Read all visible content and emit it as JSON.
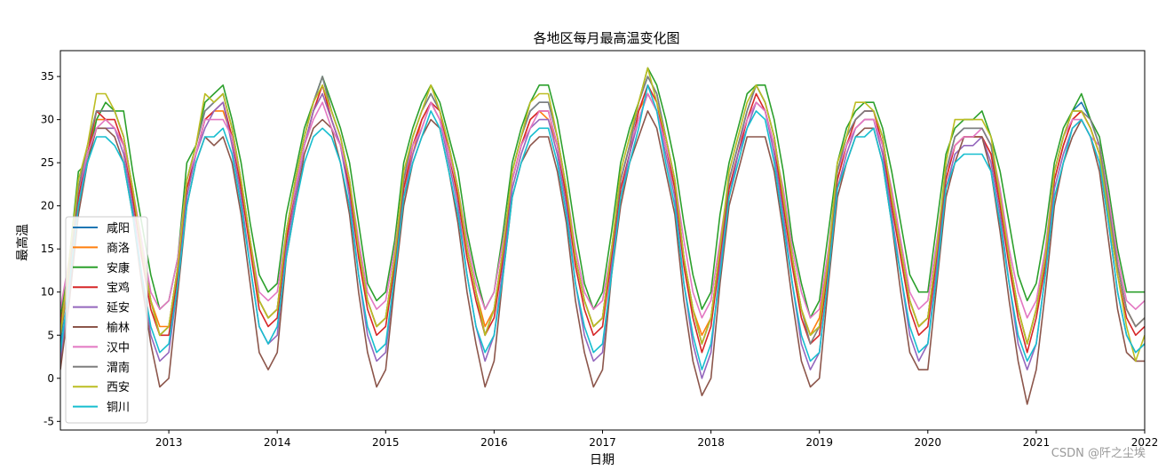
{
  "chart_data": {
    "type": "line",
    "title": "各地区每月最高温变化图",
    "xlabel": "日期",
    "ylabel": "最高温",
    "x_start": "2012-01",
    "x_end": "2022-01",
    "xticks": [
      "2013",
      "2014",
      "2015",
      "2016",
      "2017",
      "2018",
      "2019",
      "2020",
      "2021",
      "2022"
    ],
    "yticks": [
      -5,
      0,
      5,
      10,
      15,
      20,
      25,
      30,
      35
    ],
    "ylim": [
      -6,
      38
    ],
    "grid": false,
    "legend_position": "lower-left",
    "series": [
      {
        "name": "咸阳",
        "color": "#1f77b4",
        "values": [
          4,
          13,
          22,
          27,
          31,
          31,
          31,
          28,
          22,
          15,
          9,
          5,
          6,
          13,
          23,
          27,
          31,
          32,
          33,
          29,
          23,
          16,
          9,
          7,
          8,
          17,
          23,
          28,
          32,
          35,
          31,
          28,
          23,
          15,
          9,
          6,
          7,
          14,
          23,
          28,
          31,
          33,
          31,
          27,
          22,
          15,
          10,
          5,
          8,
          15,
          24,
          28,
          31,
          32,
          32,
          28,
          22,
          14,
          9,
          6,
          7,
          15,
          23,
          27,
          32,
          35,
          33,
          28,
          23,
          14,
          8,
          4,
          7,
          15,
          23,
          27,
          31,
          34,
          32,
          28,
          21,
          14,
          8,
          5,
          6,
          14,
          24,
          28,
          30,
          31,
          31,
          28,
          21,
          15,
          9,
          6,
          7,
          15,
          24,
          28,
          29,
          29,
          29,
          27,
          21,
          14,
          8,
          4,
          8,
          14,
          24,
          28,
          31,
          32,
          30,
          27,
          20,
          13,
          8,
          6,
          7
        ]
      },
      {
        "name": "商洛",
        "color": "#ff7f0e",
        "values": [
          5,
          12,
          21,
          26,
          30,
          30,
          29,
          27,
          21,
          15,
          9,
          6,
          6,
          13,
          22,
          26,
          30,
          31,
          31,
          28,
          22,
          16,
          9,
          7,
          8,
          16,
          22,
          27,
          31,
          33,
          30,
          27,
          22,
          15,
          9,
          6,
          7,
          14,
          22,
          26,
          30,
          32,
          30,
          26,
          21,
          15,
          10,
          6,
          8,
          15,
          23,
          27,
          30,
          31,
          30,
          27,
          21,
          14,
          9,
          6,
          7,
          15,
          22,
          26,
          31,
          33,
          31,
          27,
          22,
          14,
          8,
          5,
          7,
          15,
          22,
          26,
          30,
          32,
          31,
          27,
          21,
          14,
          8,
          5,
          7,
          14,
          23,
          27,
          29,
          30,
          30,
          27,
          21,
          15,
          9,
          6,
          7,
          15,
          23,
          27,
          28,
          28,
          28,
          26,
          21,
          14,
          8,
          4,
          8,
          14,
          23,
          27,
          30,
          31,
          29,
          26,
          20,
          13,
          8,
          6,
          7
        ]
      },
      {
        "name": "安康",
        "color": "#2ca02c",
        "values": [
          7,
          14,
          24,
          25,
          30,
          32,
          31,
          31,
          24,
          18,
          12,
          8,
          9,
          14,
          25,
          27,
          32,
          33,
          34,
          30,
          25,
          18,
          12,
          10,
          11,
          19,
          24,
          29,
          32,
          35,
          32,
          29,
          25,
          18,
          11,
          9,
          10,
          16,
          25,
          29,
          32,
          34,
          32,
          28,
          24,
          17,
          12,
          8,
          10,
          17,
          25,
          29,
          32,
          34,
          34,
          30,
          24,
          17,
          11,
          8,
          10,
          17,
          25,
          29,
          32,
          36,
          34,
          30,
          25,
          18,
          12,
          8,
          10,
          19,
          25,
          29,
          33,
          34,
          34,
          30,
          24,
          16,
          11,
          7,
          9,
          17,
          25,
          29,
          31,
          32,
          32,
          29,
          24,
          18,
          12,
          10,
          10,
          18,
          26,
          29,
          30,
          30,
          31,
          28,
          24,
          18,
          12,
          9,
          11,
          17,
          25,
          29,
          31,
          33,
          30,
          28,
          22,
          15,
          10,
          10,
          10
        ]
      },
      {
        "name": "宝鸡",
        "color": "#d62728",
        "values": [
          6,
          13,
          21,
          26,
          31,
          30,
          30,
          27,
          21,
          14,
          8,
          5,
          5,
          12,
          22,
          26,
          30,
          31,
          32,
          28,
          22,
          15,
          8,
          6,
          7,
          16,
          22,
          27,
          31,
          34,
          30,
          27,
          22,
          14,
          8,
          5,
          6,
          13,
          22,
          27,
          30,
          32,
          31,
          26,
          21,
          14,
          9,
          5,
          7,
          14,
          23,
          27,
          30,
          31,
          31,
          27,
          21,
          13,
          8,
          5,
          6,
          14,
          22,
          26,
          31,
          34,
          32,
          27,
          22,
          13,
          7,
          3,
          6,
          14,
          22,
          26,
          30,
          33,
          31,
          27,
          20,
          13,
          7,
          4,
          5,
          13,
          23,
          27,
          30,
          31,
          31,
          27,
          20,
          14,
          8,
          5,
          6,
          14,
          23,
          27,
          28,
          28,
          28,
          26,
          20,
          13,
          7,
          3,
          7,
          13,
          23,
          27,
          30,
          31,
          29,
          26,
          19,
          12,
          7,
          5,
          6
        ]
      },
      {
        "name": "延安",
        "color": "#9467bd",
        "values": [
          2,
          10,
          20,
          26,
          29,
          29,
          29,
          26,
          20,
          12,
          5,
          2,
          3,
          11,
          21,
          26,
          29,
          31,
          32,
          27,
          21,
          13,
          6,
          4,
          5,
          15,
          21,
          27,
          31,
          33,
          30,
          27,
          21,
          12,
          5,
          2,
          3,
          12,
          21,
          26,
          29,
          32,
          30,
          25,
          20,
          12,
          6,
          2,
          5,
          13,
          22,
          26,
          29,
          30,
          30,
          26,
          20,
          11,
          5,
          2,
          3,
          13,
          21,
          26,
          30,
          33,
          31,
          26,
          21,
          11,
          4,
          0,
          3,
          13,
          21,
          26,
          29,
          32,
          31,
          26,
          19,
          11,
          4,
          1,
          3,
          12,
          22,
          26,
          29,
          30,
          30,
          26,
          19,
          12,
          5,
          2,
          4,
          13,
          22,
          26,
          27,
          27,
          28,
          25,
          19,
          11,
          4,
          1,
          4,
          12,
          22,
          26,
          29,
          30,
          28,
          25,
          18,
          10,
          5,
          3,
          4
        ]
      },
      {
        "name": "榆林",
        "color": "#8c564b",
        "values": [
          1,
          9,
          19,
          25,
          29,
          29,
          28,
          25,
          19,
          11,
          4,
          -1,
          0,
          10,
          20,
          25,
          28,
          27,
          28,
          25,
          19,
          11,
          3,
          1,
          3,
          14,
          20,
          26,
          29,
          30,
          29,
          25,
          19,
          10,
          3,
          -1,
          1,
          11,
          20,
          25,
          28,
          30,
          29,
          24,
          18,
          10,
          4,
          -1,
          2,
          12,
          21,
          25,
          27,
          28,
          28,
          24,
          18,
          9,
          3,
          -1,
          1,
          12,
          20,
          25,
          28,
          31,
          29,
          24,
          19,
          9,
          2,
          -2,
          0,
          11,
          20,
          24,
          28,
          28,
          28,
          24,
          17,
          9,
          2,
          -1,
          0,
          11,
          21,
          25,
          28,
          29,
          29,
          25,
          18,
          10,
          3,
          1,
          1,
          11,
          21,
          25,
          28,
          28,
          28,
          24,
          17,
          9,
          2,
          -3,
          1,
          10,
          20,
          25,
          28,
          30,
          28,
          24,
          16,
          8,
          3,
          2,
          2
        ]
      },
      {
        "name": "汉中",
        "color": "#e377c2",
        "values": [
          8,
          14,
          22,
          26,
          29,
          30,
          29,
          27,
          22,
          16,
          10,
          8,
          9,
          14,
          23,
          26,
          30,
          30,
          30,
          28,
          23,
          16,
          10,
          9,
          10,
          17,
          22,
          27,
          30,
          32,
          29,
          27,
          23,
          16,
          10,
          8,
          9,
          15,
          23,
          27,
          29,
          32,
          30,
          26,
          22,
          16,
          11,
          8,
          10,
          16,
          23,
          27,
          29,
          31,
          31,
          27,
          22,
          15,
          10,
          8,
          9,
          15,
          23,
          27,
          30,
          33,
          31,
          27,
          23,
          16,
          10,
          7,
          9,
          16,
          23,
          27,
          30,
          32,
          31,
          27,
          22,
          15,
          10,
          7,
          8,
          15,
          24,
          27,
          29,
          30,
          30,
          27,
          22,
          16,
          10,
          8,
          9,
          16,
          24,
          27,
          28,
          28,
          29,
          27,
          22,
          15,
          10,
          7,
          9,
          15,
          24,
          28,
          30,
          30,
          28,
          27,
          21,
          14,
          9,
          8,
          9
        ]
      },
      {
        "name": "渭南",
        "color": "#7f7f7f",
        "values": [
          5,
          13,
          22,
          27,
          31,
          31,
          31,
          28,
          22,
          15,
          9,
          5,
          6,
          13,
          23,
          27,
          31,
          32,
          33,
          29,
          23,
          16,
          9,
          7,
          8,
          17,
          23,
          28,
          32,
          35,
          31,
          28,
          23,
          15,
          9,
          6,
          7,
          14,
          23,
          28,
          31,
          33,
          31,
          27,
          22,
          15,
          10,
          5,
          8,
          15,
          24,
          28,
          31,
          32,
          32,
          28,
          22,
          14,
          9,
          6,
          7,
          15,
          23,
          27,
          32,
          35,
          33,
          28,
          23,
          14,
          8,
          4,
          7,
          15,
          23,
          27,
          31,
          34,
          32,
          28,
          21,
          14,
          8,
          4,
          6,
          14,
          24,
          28,
          30,
          31,
          31,
          28,
          21,
          15,
          9,
          6,
          7,
          15,
          24,
          28,
          29,
          29,
          29,
          27,
          21,
          14,
          8,
          4,
          8,
          14,
          24,
          28,
          31,
          31,
          30,
          27,
          20,
          13,
          8,
          6,
          7
        ]
      },
      {
        "name": "西安",
        "color": "#bcbd22",
        "values": [
          5,
          14,
          23,
          27,
          33,
          33,
          31,
          28,
          22,
          15,
          9,
          5,
          6,
          13,
          23,
          27,
          33,
          32,
          33,
          29,
          23,
          16,
          9,
          7,
          8,
          17,
          23,
          28,
          32,
          34,
          31,
          28,
          23,
          15,
          9,
          6,
          7,
          14,
          24,
          28,
          31,
          34,
          31,
          27,
          22,
          15,
          10,
          5,
          8,
          15,
          24,
          28,
          32,
          33,
          33,
          28,
          22,
          14,
          9,
          6,
          7,
          15,
          24,
          28,
          32,
          36,
          32,
          28,
          23,
          14,
          8,
          4,
          7,
          15,
          24,
          28,
          32,
          34,
          32,
          28,
          21,
          14,
          8,
          5,
          6,
          14,
          25,
          28,
          32,
          32,
          31,
          28,
          21,
          15,
          9,
          6,
          7,
          15,
          25,
          30,
          30,
          30,
          30,
          28,
          21,
          14,
          8,
          4,
          8,
          14,
          24,
          28,
          31,
          31,
          29,
          26,
          19,
          12,
          6,
          2,
          5
        ]
      },
      {
        "name": "铜川",
        "color": "#17becf",
        "values": [
          3,
          11,
          20,
          25,
          28,
          28,
          27,
          25,
          19,
          12,
          6,
          3,
          4,
          11,
          20,
          25,
          28,
          28,
          29,
          26,
          20,
          13,
          6,
          4,
          6,
          14,
          20,
          25,
          28,
          29,
          28,
          25,
          20,
          12,
          6,
          3,
          4,
          12,
          21,
          25,
          28,
          31,
          29,
          24,
          19,
          12,
          6,
          3,
          5,
          12,
          21,
          25,
          28,
          29,
          29,
          25,
          19,
          11,
          6,
          3,
          4,
          12,
          21,
          25,
          29,
          34,
          31,
          25,
          20,
          11,
          5,
          1,
          4,
          12,
          21,
          25,
          29,
          31,
          30,
          25,
          18,
          11,
          5,
          2,
          3,
          12,
          22,
          25,
          28,
          28,
          29,
          25,
          18,
          12,
          6,
          3,
          4,
          12,
          22,
          25,
          26,
          26,
          26,
          24,
          18,
          11,
          5,
          2,
          4,
          12,
          21,
          25,
          29,
          30,
          28,
          25,
          18,
          10,
          5,
          3,
          4
        ]
      }
    ]
  },
  "watermark": "CSDN @阡之尘埃"
}
